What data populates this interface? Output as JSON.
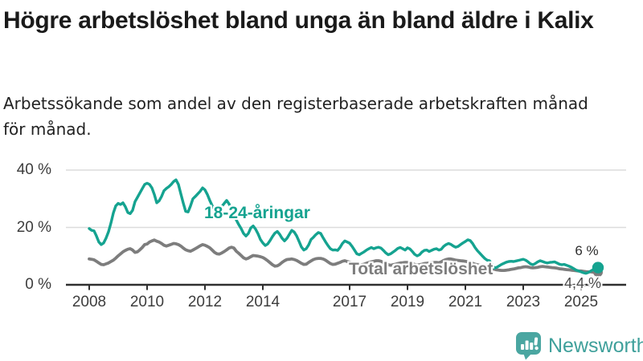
{
  "header": {
    "title": "Högre arbetslöshet bland unga än bland äldre i Kalix",
    "subtitle": "Arbetssökande som andel av den registerbaserade arbetskraften månad för månad."
  },
  "chart_data": {
    "type": "line",
    "x_unit": "month",
    "x_start": "2008-01",
    "x_end": "2025-08",
    "x_ticks": [
      2008,
      2010,
      2012,
      2014,
      2017,
      2019,
      2021,
      2023,
      2025
    ],
    "y_ticks": [
      {
        "value": 0,
        "label": "0 %"
      },
      {
        "value": 20,
        "label": "20 %"
      },
      {
        "value": 40,
        "label": "40 %"
      }
    ],
    "ylim": [
      0,
      42
    ],
    "grid": "horizontal-only",
    "legend_position": "inline-labels",
    "axis_color": "#2f2f2f",
    "grid_color": "#dcdcdc",
    "series": [
      {
        "name": "Total arbetslöshet",
        "color": "#7d7d7d",
        "end_label": "4,4 %",
        "end_value": 4.4,
        "values": [
          9.0,
          8.9,
          8.7,
          8.2,
          7.6,
          7.1,
          7.0,
          7.3,
          7.6,
          8.1,
          8.6,
          9.3,
          10.1,
          10.8,
          11.5,
          12.0,
          12.4,
          12.6,
          12.1,
          11.3,
          11.5,
          12.2,
          13.0,
          14.0,
          14.2,
          14.9,
          15.3,
          15.6,
          15.2,
          14.9,
          14.4,
          13.8,
          13.5,
          13.8,
          14.1,
          14.4,
          14.3,
          14.0,
          13.5,
          12.8,
          12.2,
          11.9,
          11.7,
          12.1,
          12.6,
          13.1,
          13.6,
          14.0,
          13.8,
          13.4,
          12.9,
          12.1,
          11.3,
          10.8,
          10.7,
          11.1,
          11.6,
          12.2,
          12.8,
          13.1,
          12.8,
          11.7,
          11.0,
          10.2,
          9.4,
          9.0,
          9.3,
          9.8,
          10.2,
          10.1,
          10.0,
          9.8,
          9.5,
          9.0,
          8.4,
          7.7,
          7.0,
          6.5,
          6.6,
          7.1,
          7.8,
          8.4,
          8.8,
          8.9,
          9.0,
          8.8,
          8.5,
          8.0,
          7.5,
          7.1,
          7.2,
          7.8,
          8.3,
          8.8,
          9.1,
          9.2,
          9.2,
          9.0,
          8.6,
          8.0,
          7.4,
          7.1,
          7.2,
          7.5,
          7.8,
          8.2,
          8.4,
          8.1,
          7.9,
          7.7,
          7.4,
          7.1,
          6.8,
          7.0,
          7.2,
          7.5,
          7.8,
          8.0,
          8.2,
          8.4,
          8.4,
          8.2,
          7.8,
          7.4,
          7.0,
          6.8,
          7.0,
          7.2,
          7.4,
          7.6,
          7.7,
          7.8,
          7.8,
          7.6,
          7.4,
          7.1,
          6.9,
          7.0,
          7.2,
          7.4,
          7.5,
          7.6,
          7.7,
          7.8,
          7.8,
          7.7,
          8.0,
          8.5,
          8.8,
          9.0,
          9.0,
          8.8,
          8.6,
          8.5,
          8.4,
          8.3,
          8.2,
          8.0,
          7.8,
          7.5,
          7.2,
          7.0,
          6.8,
          6.5,
          6.2,
          6.0,
          5.8,
          5.6,
          5.4,
          5.2,
          5.1,
          5.0,
          5.0,
          5.1,
          5.2,
          5.4,
          5.5,
          5.7,
          5.9,
          6.0,
          6.2,
          6.3,
          6.2,
          6.0,
          5.9,
          6.0,
          6.1,
          6.3,
          6.4,
          6.3,
          6.2,
          6.1,
          6.0,
          5.9,
          5.8,
          5.6,
          5.5,
          5.4,
          5.3,
          5.2,
          5.1,
          5.0,
          4.9,
          4.8,
          4.8,
          4.7,
          4.6,
          4.5,
          4.5,
          4.4,
          4.4,
          4.4
        ]
      },
      {
        "name": "18-24-åringar",
        "color": "#15a390",
        "end_label": "6 %",
        "end_value": 6.0,
        "values": [
          19.6,
          19.0,
          18.8,
          17.0,
          14.9,
          14.0,
          14.6,
          16.3,
          18.5,
          21.5,
          25.0,
          27.5,
          28.4,
          28.0,
          28.6,
          27.2,
          25.2,
          24.8,
          26.0,
          29.0,
          30.5,
          32.0,
          33.5,
          35.0,
          35.4,
          35.0,
          33.8,
          31.5,
          28.6,
          29.3,
          30.8,
          32.8,
          33.6,
          34.2,
          35.0,
          36.0,
          36.6,
          35.0,
          31.7,
          28.5,
          25.6,
          25.4,
          27.5,
          30.0,
          30.8,
          31.7,
          32.6,
          33.8,
          33.1,
          31.5,
          29.4,
          27.6,
          26.3,
          25.7,
          26.4,
          27.3,
          28.4,
          29.4,
          28.2,
          26.2,
          24.3,
          22.6,
          21.0,
          19.6,
          17.9,
          17.0,
          17.9,
          19.8,
          20.5,
          19.4,
          17.8,
          15.8,
          14.6,
          13.7,
          14.2,
          15.4,
          16.8,
          18.0,
          18.6,
          17.6,
          16.2,
          15.3,
          16.2,
          17.6,
          19.0,
          18.4,
          17.1,
          15.2,
          13.2,
          12.1,
          12.6,
          13.9,
          15.8,
          16.6,
          17.5,
          18.2,
          17.9,
          16.4,
          15.0,
          13.7,
          12.6,
          12.1,
          12.2,
          12.0,
          13.0,
          14.4,
          15.3,
          14.9,
          14.5,
          13.4,
          12.1,
          10.8,
          10.5,
          11.0,
          11.5,
          12.1,
          12.6,
          13.0,
          12.6,
          12.9,
          13.1,
          12.8,
          12.0,
          11.1,
          10.5,
          10.8,
          11.4,
          12.0,
          12.7,
          13.0,
          12.6,
          12.1,
          12.9,
          12.5,
          11.6,
          10.6,
          10.1,
          10.5,
          11.4,
          12.0,
          12.1,
          11.6,
          12.0,
          12.4,
          12.6,
          12.1,
          12.4,
          13.4,
          14.0,
          14.4,
          14.1,
          13.5,
          13.1,
          13.4,
          14.0,
          14.6,
          15.1,
          15.7,
          15.4,
          14.4,
          13.0,
          11.9,
          11.0,
          10.1,
          9.2,
          8.6,
          8.4,
          7.2,
          5.8,
          6.1,
          6.6,
          7.1,
          7.5,
          7.9,
          8.1,
          8.2,
          8.1,
          8.3,
          8.5,
          8.7,
          8.9,
          8.6,
          8.0,
          7.3,
          7.0,
          7.4,
          8.0,
          8.4,
          8.1,
          7.8,
          7.6,
          7.8,
          7.9,
          8.0,
          7.6,
          7.2,
          7.0,
          7.1,
          6.8,
          6.5,
          6.1,
          5.6,
          5.1,
          4.8,
          4.5,
          4.2,
          4.0,
          4.3,
          4.8,
          5.3,
          5.8,
          6.0
        ]
      }
    ]
  },
  "footer": {
    "brand": "Newsworthy",
    "brand_color": "#3fa09b"
  }
}
